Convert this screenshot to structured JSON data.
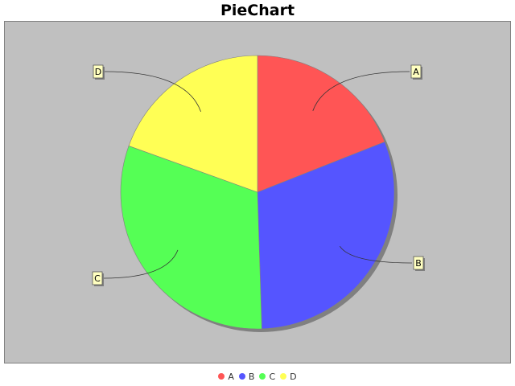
{
  "chart_data": {
    "type": "pie",
    "title": "PieChart",
    "categories": [
      "A",
      "B",
      "C",
      "D"
    ],
    "values": [
      19,
      30.5,
      31,
      19.5
    ],
    "colors": [
      "#ff5555",
      "#5555ff",
      "#55ff55",
      "#ffff55"
    ],
    "legend_position": "bottom",
    "background_color": "#c0c0c0",
    "labels_outside": true
  }
}
